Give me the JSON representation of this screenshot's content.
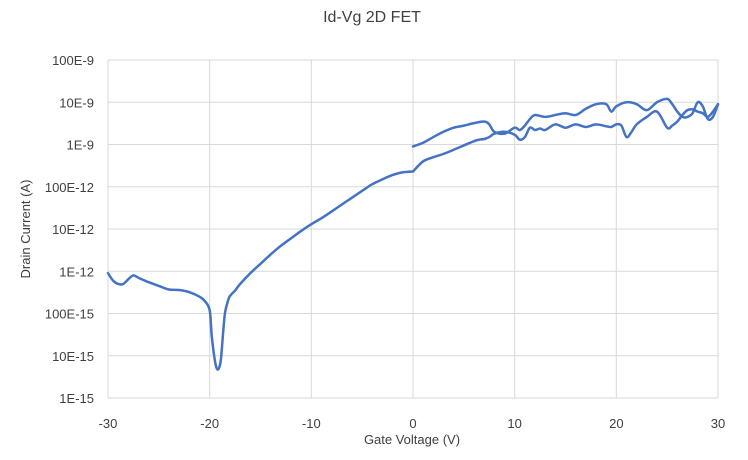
{
  "chart_data": {
    "type": "line",
    "title": "Id-Vg 2D FET",
    "xlabel": "Gate Voltage (V)",
    "ylabel": "Drain Current (A)",
    "xlim": [
      -30,
      30
    ],
    "x_ticks": [
      -30,
      -20,
      -10,
      0,
      10,
      20,
      30
    ],
    "x_tick_labels": [
      "-30",
      "-20",
      "-10",
      "0",
      "10",
      "20",
      "30"
    ],
    "y_scale": "log",
    "ylim": [
      1e-15,
      1e-07
    ],
    "y_ticks": [
      1e-15,
      1e-14,
      1e-13,
      1e-12,
      1e-11,
      1e-10,
      1e-09,
      1e-08,
      1e-07
    ],
    "y_tick_labels": [
      "1E-15",
      "10E-15",
      "100E-15",
      "1E-12",
      "10E-12",
      "100E-12",
      "1E-9",
      "10E-9",
      "100E-9"
    ],
    "grid": true,
    "line_color": "#4472c4",
    "series": [
      {
        "x": [
          -30,
          -29.5,
          -29,
          -28.5,
          -28,
          -27.5,
          -27,
          -26,
          -25,
          -24,
          -23,
          -22,
          -21,
          -20.5,
          -20,
          -19.8,
          -19.5,
          -19.3,
          -19.1,
          -18.9,
          -18.7,
          -18.5,
          -18.2,
          -18,
          -17.5,
          -17,
          -16,
          -15,
          -14,
          -13,
          -12,
          -11,
          -10,
          -9,
          -8,
          -7,
          -6,
          -5,
          -4,
          -3,
          -2,
          -1,
          0
        ],
        "y": [
          9e-13,
          6e-13,
          5e-13,
          5e-13,
          6.5e-13,
          8e-13,
          7e-13,
          5.5e-13,
          4.5e-13,
          3.7e-13,
          3.6e-13,
          3.2e-13,
          2.5e-13,
          2e-13,
          1.2e-13,
          3e-14,
          8e-15,
          5e-15,
          5e-15,
          8e-15,
          3e-14,
          1e-13,
          2e-13,
          2.6e-13,
          3.5e-13,
          5e-13,
          9e-13,
          1.5e-12,
          2.5e-12,
          4e-12,
          6e-12,
          9e-12,
          1.3e-11,
          1.8e-11,
          2.6e-11,
          3.8e-11,
          5.5e-11,
          8e-11,
          1.15e-10,
          1.5e-10,
          1.9e-10,
          2.2e-10,
          2.3e-10
        ]
      },
      {
        "x": [
          0,
          1,
          2,
          3,
          4,
          5,
          6,
          6.5,
          7,
          7.5,
          8,
          9,
          10,
          10.5,
          11,
          11.5,
          12,
          12.5,
          13,
          14,
          15,
          16,
          17,
          18,
          19,
          19.5,
          20,
          20.5,
          21,
          21.5,
          22,
          23,
          24,
          25,
          25.5,
          26,
          26.5,
          27,
          27.5,
          28,
          28.5,
          29,
          29.5,
          30
        ],
        "y": [
          2.3e-10,
          4e-10,
          5e-10,
          6e-10,
          7.5e-10,
          9.5e-10,
          1.2e-09,
          1.3e-09,
          1.35e-09,
          1.5e-09,
          1.8e-09,
          2e-09,
          1.7e-09,
          1.3e-09,
          1.5e-09,
          2.5e-09,
          2.2e-09,
          2.4e-09,
          2.2e-09,
          3e-09,
          2.5e-09,
          3e-09,
          2.6e-09,
          3e-09,
          2.7e-09,
          2.6e-09,
          3e-09,
          2.8e-09,
          1.5e-09,
          2e-09,
          3e-09,
          4.5e-09,
          6e-09,
          2.5e-09,
          2.8e-09,
          3.5e-09,
          5e-09,
          6.5e-09,
          6.8e-09,
          6e-09,
          5.5e-09,
          4.5e-09,
          6e-09,
          9e-09
        ]
      },
      {
        "x": [
          0,
          1,
          2,
          3,
          4,
          5,
          6,
          7,
          7.5,
          8,
          9,
          10,
          10.5,
          11,
          11.5,
          12,
          13,
          14,
          15,
          16,
          17,
          18,
          19,
          19.5,
          20,
          21,
          22,
          23,
          24,
          25,
          25.5,
          26,
          26.5,
          27,
          27.5,
          28,
          28.5,
          29,
          29.5,
          30
        ],
        "y": [
          9e-10,
          1.1e-09,
          1.5e-09,
          2e-09,
          2.5e-09,
          2.8e-09,
          3.2e-09,
          3.5e-09,
          3e-09,
          2e-09,
          1.8e-09,
          2.5e-09,
          2.2e-09,
          2.8e-09,
          4e-09,
          5e-09,
          4.5e-09,
          5e-09,
          5.5e-09,
          5e-09,
          7e-09,
          9e-09,
          9e-09,
          6e-09,
          8e-09,
          1e-08,
          9e-09,
          6.5e-09,
          1e-08,
          1.2e-08,
          9e-09,
          6e-09,
          4.5e-09,
          4.5e-09,
          5.5e-09,
          1e-08,
          8e-09,
          4e-09,
          4.5e-09,
          9e-09
        ]
      }
    ]
  }
}
